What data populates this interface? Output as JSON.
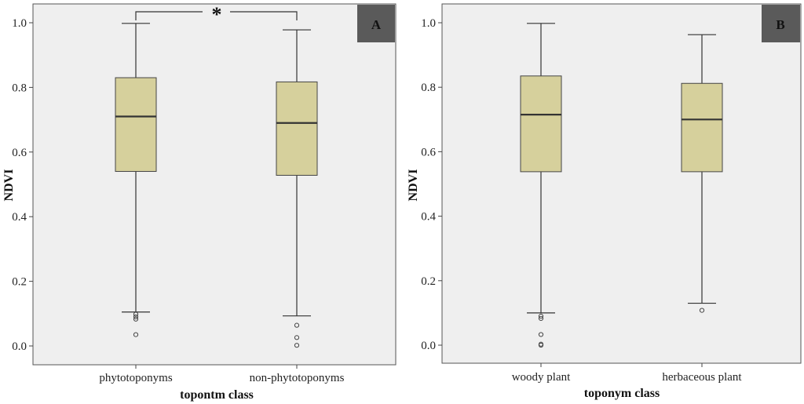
{
  "chart_data": [
    {
      "type": "box",
      "panel_label": "A",
      "xlabel": "topontm class",
      "ylabel": "NDVI",
      "ylim": [
        0.0,
        1.0
      ],
      "yticks": [
        "0.0",
        "0.2",
        "0.4",
        "0.6",
        "0.8",
        "1.0"
      ],
      "categories": [
        "phytotoponyms",
        "non-phytotoponyms"
      ],
      "boxes": [
        {
          "category": "phytotoponyms",
          "whisker_low": 0.105,
          "q1": 0.54,
          "median": 0.71,
          "q3": 0.83,
          "whisker_high": 0.998,
          "outliers": [
            0.098,
            0.09,
            0.083,
            0.035
          ]
        },
        {
          "category": "non-phytotoponyms",
          "whisker_low": 0.093,
          "q1": 0.528,
          "median": 0.69,
          "q3": 0.817,
          "whisker_high": 0.978,
          "outliers": [
            0.064,
            0.026,
            0.002
          ]
        }
      ],
      "significance_marker": "*",
      "box_color": "#d6d09c",
      "background": "#efefef"
    },
    {
      "type": "box",
      "panel_label": "B",
      "xlabel": "toponym class",
      "ylabel": "NDVI",
      "ylim": [
        0.0,
        1.0
      ],
      "yticks": [
        "0.0",
        "0.2",
        "0.4",
        "0.6",
        "0.8",
        "1.0"
      ],
      "categories": [
        "woody plant",
        "herbaceous plant"
      ],
      "boxes": [
        {
          "category": "woody plant",
          "whisker_low": 0.1,
          "q1": 0.538,
          "median": 0.715,
          "q3": 0.835,
          "whisker_high": 0.998,
          "outliers": [
            0.09,
            0.083,
            0.033,
            0.003,
            0.0
          ]
        },
        {
          "category": "herbaceous plant",
          "whisker_low": 0.13,
          "q1": 0.538,
          "median": 0.7,
          "q3": 0.812,
          "whisker_high": 0.963,
          "outliers": [
            0.108
          ]
        }
      ],
      "box_color": "#d6d09c",
      "background": "#efefef"
    }
  ]
}
